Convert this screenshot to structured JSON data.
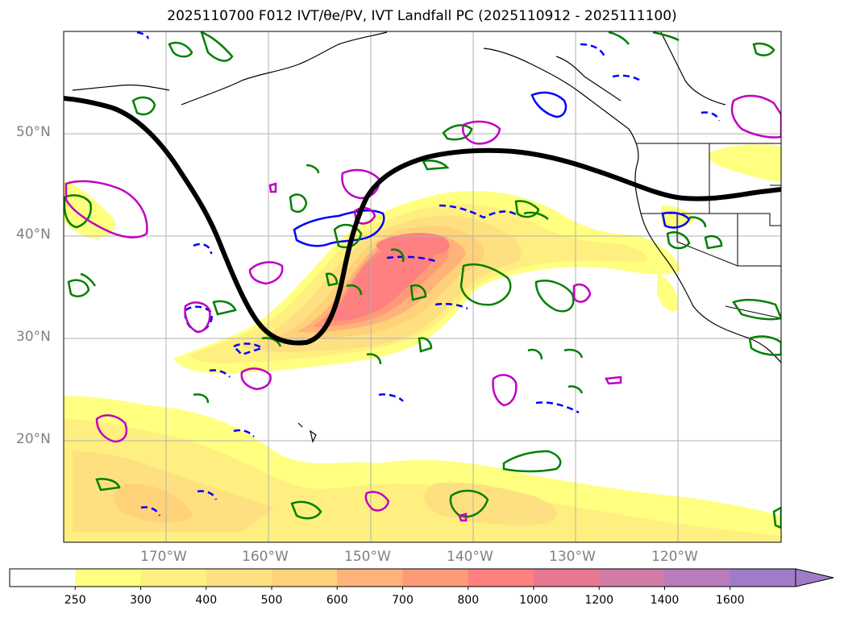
{
  "title": "2025110700 F012 IVT/θe/PV, IVT Landfall PC (2025110912 - 2025111100)",
  "map": {
    "lon_range": [
      -180,
      -110
    ],
    "lat_range": [
      10,
      60
    ],
    "lat_ticks": [
      "50°N",
      "40°N",
      "30°N",
      "20°N"
    ],
    "lon_ticks": [
      "170°W",
      "160°W",
      "150°W",
      "140°W",
      "130°W",
      "120°W"
    ]
  },
  "colorbar": {
    "levels": [
      "250",
      "300",
      "400",
      "500",
      "600",
      "700",
      "800",
      "1000",
      "1200",
      "1400",
      "1600"
    ],
    "colors": [
      "#ffffff",
      "#ffff80",
      "#ffef80",
      "#ffe080",
      "#ffd27a",
      "#ffb27a",
      "#ff9a78",
      "#ff8080",
      "#e87890",
      "#d27aa8",
      "#b87cbc",
      "#a07cc8"
    ],
    "extend": "max"
  },
  "colors": {
    "ivt_contour_green": "#008000",
    "pv_contour_blue": "#0000ff",
    "theta_contour_magenta": "#c000c0",
    "pc_line": "#000000",
    "grid": "#b0b0b0",
    "coast": "#000000"
  }
}
